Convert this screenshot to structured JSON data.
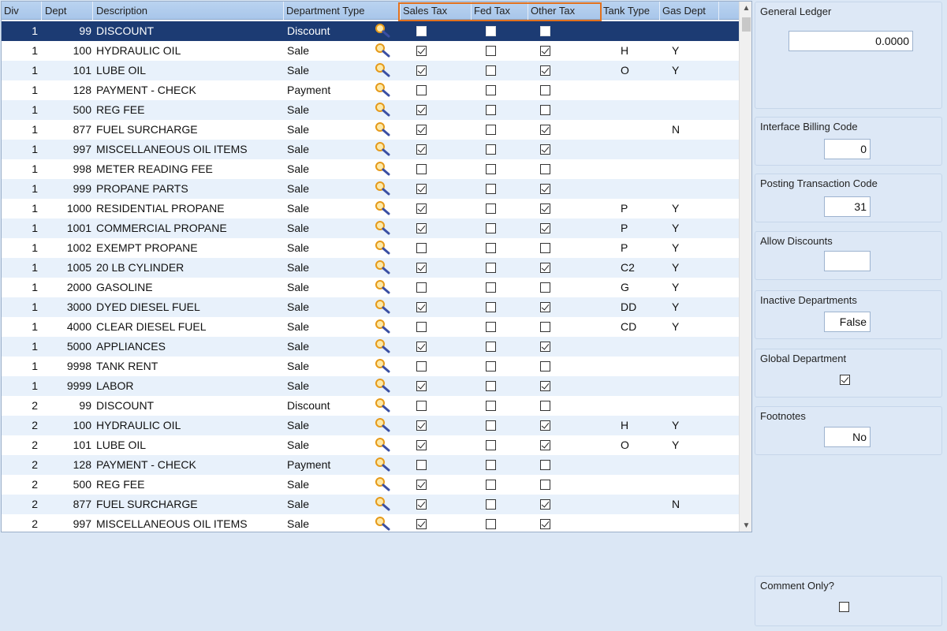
{
  "columns": {
    "div": "Div",
    "dept": "Dept",
    "description": "Description",
    "department_type": "Department Type",
    "sales_tax": "Sales  Tax",
    "fed_tax": "Fed  Tax",
    "other_tax": "Other  Tax",
    "tank_type": "Tank Type",
    "gas_dept": "Gas Dept"
  },
  "rows": [
    {
      "div": "1",
      "dept": "99",
      "description": "DISCOUNT",
      "type": "Discount",
      "sales": false,
      "fed": false,
      "other": false,
      "tank": "",
      "gas": "",
      "selected": true
    },
    {
      "div": "1",
      "dept": "100",
      "description": "HYDRAULIC OIL",
      "type": "Sale",
      "sales": true,
      "fed": false,
      "other": true,
      "tank": "H",
      "gas": "Y"
    },
    {
      "div": "1",
      "dept": "101",
      "description": "LUBE OIL",
      "type": "Sale",
      "sales": true,
      "fed": false,
      "other": true,
      "tank": "O",
      "gas": "Y"
    },
    {
      "div": "1",
      "dept": "128",
      "description": "PAYMENT - CHECK",
      "type": "Payment",
      "sales": false,
      "fed": false,
      "other": false,
      "tank": "",
      "gas": ""
    },
    {
      "div": "1",
      "dept": "500",
      "description": "REG FEE",
      "type": "Sale",
      "sales": true,
      "fed": false,
      "other": false,
      "tank": "",
      "gas": ""
    },
    {
      "div": "1",
      "dept": "877",
      "description": "FUEL SURCHARGE",
      "type": "Sale",
      "sales": true,
      "fed": false,
      "other": true,
      "tank": "",
      "gas": "N"
    },
    {
      "div": "1",
      "dept": "997",
      "description": "MISCELLANEOUS OIL ITEMS",
      "type": "Sale",
      "sales": true,
      "fed": false,
      "other": true,
      "tank": "",
      "gas": ""
    },
    {
      "div": "1",
      "dept": "998",
      "description": "METER READING FEE",
      "type": "Sale",
      "sales": false,
      "fed": false,
      "other": false,
      "tank": "",
      "gas": ""
    },
    {
      "div": "1",
      "dept": "999",
      "description": "PROPANE PARTS",
      "type": "Sale",
      "sales": true,
      "fed": false,
      "other": true,
      "tank": "",
      "gas": ""
    },
    {
      "div": "1",
      "dept": "1000",
      "description": "RESIDENTIAL PROPANE",
      "type": "Sale",
      "sales": true,
      "fed": false,
      "other": true,
      "tank": "P",
      "gas": "Y"
    },
    {
      "div": "1",
      "dept": "1001",
      "description": "COMMERCIAL PROPANE",
      "type": "Sale",
      "sales": true,
      "fed": false,
      "other": true,
      "tank": "P",
      "gas": "Y"
    },
    {
      "div": "1",
      "dept": "1002",
      "description": "EXEMPT PROPANE",
      "type": "Sale",
      "sales": false,
      "fed": false,
      "other": false,
      "tank": "P",
      "gas": "Y"
    },
    {
      "div": "1",
      "dept": "1005",
      "description": "20 LB CYLINDER",
      "type": "Sale",
      "sales": true,
      "fed": false,
      "other": true,
      "tank": "C2",
      "gas": "Y"
    },
    {
      "div": "1",
      "dept": "2000",
      "description": "GASOLINE",
      "type": "Sale",
      "sales": false,
      "fed": false,
      "other": false,
      "tank": "G",
      "gas": "Y"
    },
    {
      "div": "1",
      "dept": "3000",
      "description": "DYED DIESEL FUEL",
      "type": "Sale",
      "sales": true,
      "fed": false,
      "other": true,
      "tank": "DD",
      "gas": "Y"
    },
    {
      "div": "1",
      "dept": "4000",
      "description": "CLEAR DIESEL FUEL",
      "type": "Sale",
      "sales": false,
      "fed": false,
      "other": false,
      "tank": "CD",
      "gas": "Y"
    },
    {
      "div": "1",
      "dept": "5000",
      "description": "APPLIANCES",
      "type": "Sale",
      "sales": true,
      "fed": false,
      "other": true,
      "tank": "",
      "gas": ""
    },
    {
      "div": "1",
      "dept": "9998",
      "description": "TANK RENT",
      "type": "Sale",
      "sales": false,
      "fed": false,
      "other": false,
      "tank": "",
      "gas": ""
    },
    {
      "div": "1",
      "dept": "9999",
      "description": "LABOR",
      "type": "Sale",
      "sales": true,
      "fed": false,
      "other": true,
      "tank": "",
      "gas": ""
    },
    {
      "div": "2",
      "dept": "99",
      "description": "DISCOUNT",
      "type": "Discount",
      "sales": false,
      "fed": false,
      "other": false,
      "tank": "",
      "gas": ""
    },
    {
      "div": "2",
      "dept": "100",
      "description": "HYDRAULIC OIL",
      "type": "Sale",
      "sales": true,
      "fed": false,
      "other": true,
      "tank": "H",
      "gas": "Y"
    },
    {
      "div": "2",
      "dept": "101",
      "description": "LUBE OIL",
      "type": "Sale",
      "sales": true,
      "fed": false,
      "other": true,
      "tank": "O",
      "gas": "Y"
    },
    {
      "div": "2",
      "dept": "128",
      "description": "PAYMENT - CHECK",
      "type": "Payment",
      "sales": false,
      "fed": false,
      "other": false,
      "tank": "",
      "gas": ""
    },
    {
      "div": "2",
      "dept": "500",
      "description": "REG FEE",
      "type": "Sale",
      "sales": true,
      "fed": false,
      "other": false,
      "tank": "",
      "gas": ""
    },
    {
      "div": "2",
      "dept": "877",
      "description": "FUEL SURCHARGE",
      "type": "Sale",
      "sales": true,
      "fed": false,
      "other": true,
      "tank": "",
      "gas": "N"
    },
    {
      "div": "2",
      "dept": "997",
      "description": "MISCELLANEOUS OIL ITEMS",
      "type": "Sale",
      "sales": true,
      "fed": false,
      "other": true,
      "tank": "",
      "gas": ""
    }
  ],
  "lookup_icon": "magnifier-icon",
  "highlight_color": "#e2711d",
  "selected_row_color": "#1c3b73",
  "side_panel": {
    "general_ledger": {
      "label": "General Ledger",
      "value": "0.0000"
    },
    "interface_billing_code": {
      "label": "Interface Billing Code",
      "value": "0"
    },
    "posting_transaction_code": {
      "label": "Posting Transaction Code",
      "value": "31"
    },
    "allow_discounts": {
      "label": "Allow Discounts",
      "value": ""
    },
    "inactive_departments": {
      "label": "Inactive Departments",
      "value": "False"
    },
    "global_department": {
      "label": "Global Department",
      "checked": true
    },
    "footnotes": {
      "label": "Footnotes",
      "value": "No"
    },
    "comment_only": {
      "label": "Comment Only?",
      "checked": false
    }
  },
  "scrollbar": {
    "up_icon": "chevron-up-icon",
    "down_icon": "chevron-down-icon"
  }
}
